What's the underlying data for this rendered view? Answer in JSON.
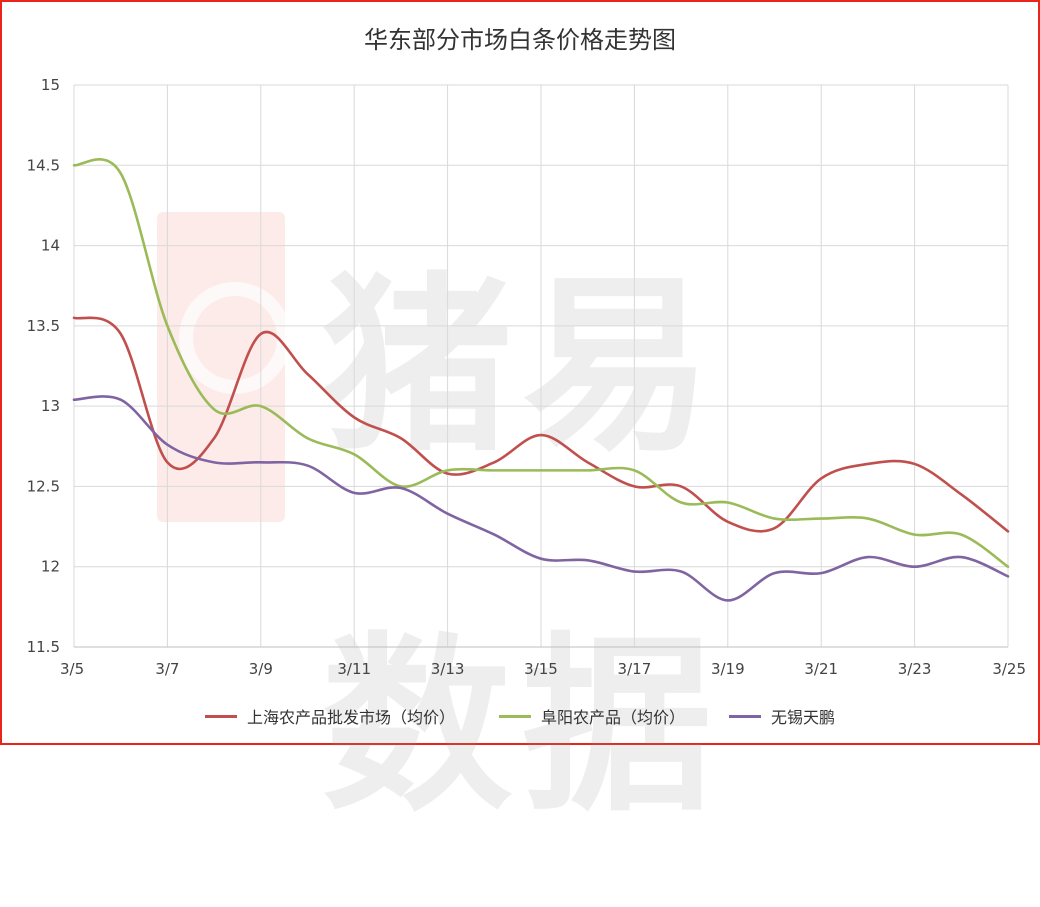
{
  "chart_data": {
    "type": "line",
    "title": "华东部分市场白条价格走势图",
    "xlabel": "",
    "ylabel": "",
    "categories": [
      "3/5",
      "3/6",
      "3/7",
      "3/8",
      "3/9",
      "3/10",
      "3/11",
      "3/12",
      "3/13",
      "3/14",
      "3/15",
      "3/16",
      "3/17",
      "3/18",
      "3/19",
      "3/20",
      "3/21",
      "3/22",
      "3/23",
      "3/24",
      "3/25"
    ],
    "x_tick_labels": [
      "3/5",
      "3/7",
      "3/9",
      "3/11",
      "3/13",
      "3/15",
      "3/17",
      "3/19",
      "3/21",
      "3/23",
      "3/25"
    ],
    "ylim": [
      11.5,
      15
    ],
    "y_ticks": [
      11.5,
      12,
      12.5,
      13,
      13.5,
      14,
      14.5,
      15
    ],
    "y_tick_labels": [
      "11.5",
      "12",
      "12.5",
      "13",
      "13.5",
      "14",
      "14.5",
      "15"
    ],
    "grid": true,
    "legend_position": "bottom",
    "series": [
      {
        "name": "上海农产品批发市场（均价）",
        "color": "#c0504d",
        "values": [
          13.55,
          13.45,
          12.65,
          12.8,
          13.45,
          13.2,
          12.93,
          12.8,
          12.58,
          12.65,
          12.82,
          12.65,
          12.5,
          12.5,
          12.28,
          12.24,
          12.55,
          12.64,
          12.64,
          12.45,
          12.22
        ]
      },
      {
        "name": "阜阳农产品（均价）",
        "color": "#9bbb59",
        "values": [
          14.5,
          14.45,
          13.5,
          12.98,
          13.0,
          12.8,
          12.7,
          12.5,
          12.6,
          12.6,
          12.6,
          12.6,
          12.6,
          12.4,
          12.4,
          12.3,
          12.3,
          12.3,
          12.2,
          12.2,
          12.0
        ]
      },
      {
        "name": "无锡天鹏",
        "color": "#8064a2",
        "values": [
          13.04,
          13.04,
          12.76,
          12.65,
          12.65,
          12.63,
          12.46,
          12.49,
          12.33,
          12.2,
          12.05,
          12.04,
          11.97,
          11.97,
          11.79,
          11.96,
          11.96,
          12.06,
          12.0,
          12.06,
          11.94
        ]
      }
    ]
  },
  "watermark": {
    "text": "猪易数据"
  }
}
